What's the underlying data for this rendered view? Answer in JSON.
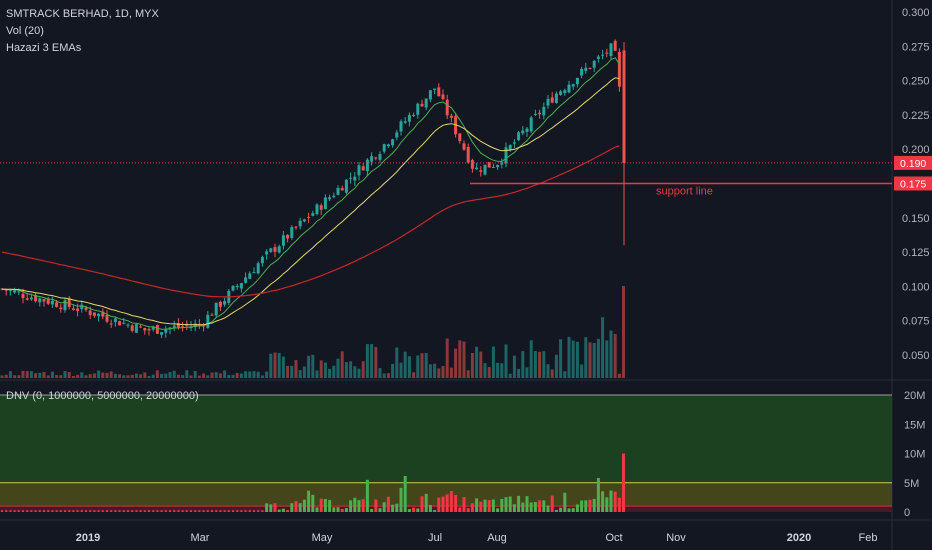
{
  "chart_data": [
    {
      "type": "candlestick",
      "title": "SMTRACK BERHAD, 1D, MYX",
      "indicators": [
        "Vol (20)",
        "Hazazi 3 EMAs"
      ],
      "x_ticks": [
        "2019",
        "Mar",
        "May",
        "Jul",
        "Aug",
        "Oct",
        "Nov",
        "2020",
        "Feb"
      ],
      "y_ticks": [
        "0.300",
        "0.275",
        "0.250",
        "0.225",
        "0.200",
        "0.175",
        "0.150",
        "0.125",
        "0.100",
        "0.075",
        "0.050"
      ],
      "ylim": [
        0.03,
        0.305
      ],
      "price_series": [
        {
          "date": "2018-11",
          "price": 0.1
        },
        {
          "date": "2018-12",
          "price": 0.09
        },
        {
          "date": "2019-01",
          "price": 0.082
        },
        {
          "date": "2019-02",
          "price": 0.068
        },
        {
          "date": "2019-03",
          "price": 0.072
        },
        {
          "date": "2019-04",
          "price": 0.118
        },
        {
          "date": "2019-05",
          "price": 0.16
        },
        {
          "date": "2019-06",
          "price": 0.2
        },
        {
          "date": "2019-07",
          "price": 0.245
        },
        {
          "date": "2019-07-20",
          "price": 0.185
        },
        {
          "date": "2019-08",
          "price": 0.19
        },
        {
          "date": "2019-09",
          "price": 0.24
        },
        {
          "date": "2019-10",
          "price": 0.275
        },
        {
          "date": "2019-10-08",
          "price": 0.19
        }
      ],
      "price_labels": [
        {
          "value": 0.19,
          "label": "0.190",
          "color": "#f23645"
        },
        {
          "value": 0.175,
          "label": "0.175",
          "color": "#f23645"
        }
      ],
      "annotations": [
        {
          "text": "support line",
          "value": 0.175
        }
      ],
      "colors": {
        "up": "#26a69a",
        "down": "#ef5350",
        "ema_short": "#4caf50",
        "ema_mid": "#e5d86a",
        "ema_long": "#c62828"
      }
    },
    {
      "type": "bar",
      "title": "DNV (0, 1000000, 5000000, 20000000)",
      "y_ticks": [
        "20M",
        "15M",
        "10M",
        "5M",
        "0"
      ],
      "ylim": [
        0,
        20000000
      ],
      "zones": [
        {
          "from": 5000000,
          "to": 20000000,
          "color": "#1e4620"
        },
        {
          "from": 1000000,
          "to": 5000000,
          "color": "#4a4a1a"
        },
        {
          "from": 0,
          "to": 1000000,
          "color": "#4a1a2a"
        }
      ],
      "peak_value": 10000000,
      "colors": {
        "up": "#4caf50",
        "down": "#f23645"
      }
    }
  ]
}
